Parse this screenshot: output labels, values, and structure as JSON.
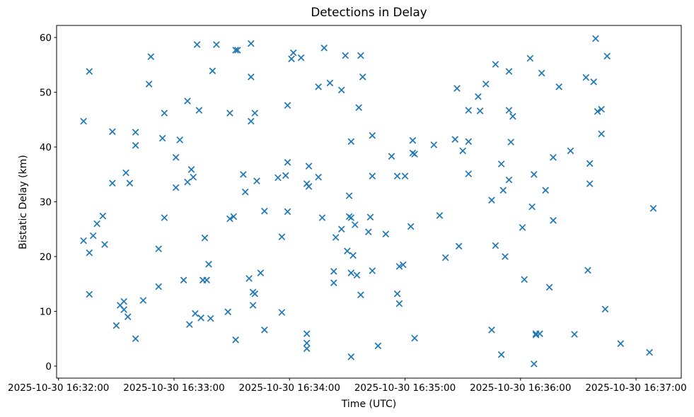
{
  "chart_data": {
    "type": "scatter",
    "title": "Detections in Delay",
    "xlabel": "Time (UTC)",
    "ylabel": "Bistatic Delay (km)",
    "marker": "x",
    "marker_color": "#1f77b4",
    "grid": false,
    "legend": null,
    "x_axis": {
      "tick_labels": [
        "2025-10-30 16:32:00",
        "2025-10-30 16:33:00",
        "2025-10-30 16:34:00",
        "2025-10-30 16:35:00",
        "2025-10-30 16:36:00",
        "2025-10-30 16:37:00"
      ],
      "tick_offsets_s": [
        0,
        60,
        120,
        180,
        240,
        300
      ],
      "range_s": [
        -1,
        323.5
      ]
    },
    "y_axis": {
      "tick_labels": [
        "0",
        "10",
        "20",
        "30",
        "40",
        "50",
        "60"
      ],
      "ticks": [
        0,
        10,
        20,
        30,
        40,
        50,
        60
      ],
      "range": [
        -2.2,
        62.2
      ]
    },
    "points_format": "[seconds_after_16:32:00_UTC, bistatic_delay_km]",
    "points": [
      [
        72,
        58.7
      ],
      [
        82,
        58.7
      ],
      [
        48,
        56.5
      ],
      [
        16,
        53.8
      ],
      [
        80,
        53.9
      ],
      [
        47,
        51.5
      ],
      [
        67,
        48.4
      ],
      [
        55,
        46.2
      ],
      [
        73,
        46.7
      ],
      [
        13,
        44.7
      ],
      [
        28,
        42.8
      ],
      [
        40,
        42.7
      ],
      [
        54,
        41.6
      ],
      [
        63,
        41.3
      ],
      [
        40,
        40.3
      ],
      [
        61,
        38.1
      ],
      [
        35,
        35.3
      ],
      [
        69,
        35.9
      ],
      [
        70,
        34.5
      ],
      [
        28,
        33.4
      ],
      [
        37,
        33.4
      ],
      [
        67,
        33.6
      ],
      [
        61,
        32.6
      ],
      [
        23,
        27.4
      ],
      [
        20,
        26.0
      ],
      [
        18,
        23.8
      ],
      [
        13,
        22.9
      ],
      [
        24,
        22.2
      ],
      [
        16,
        20.7
      ],
      [
        55,
        27.1
      ],
      [
        52,
        21.4
      ],
      [
        76,
        23.4
      ],
      [
        78,
        18.6
      ],
      [
        65,
        15.7
      ],
      [
        75,
        15.7
      ],
      [
        77,
        15.7
      ],
      [
        16,
        13.1
      ],
      [
        52,
        14.5
      ],
      [
        34,
        11.8
      ],
      [
        32,
        11.1
      ],
      [
        34,
        10.3
      ],
      [
        36,
        9.0
      ],
      [
        44,
        12.0
      ],
      [
        30,
        7.4
      ],
      [
        40,
        5.0
      ],
      [
        71,
        9.6
      ],
      [
        74,
        8.8
      ],
      [
        79,
        8.7
      ],
      [
        68,
        7.6
      ],
      [
        92,
        57.7
      ],
      [
        93,
        57.7
      ],
      [
        100,
        58.9
      ],
      [
        100,
        52.8
      ],
      [
        122,
        57.2
      ],
      [
        121,
        56.1
      ],
      [
        126,
        56.3
      ],
      [
        138,
        58.1
      ],
      [
        149,
        56.7
      ],
      [
        157,
        56.7
      ],
      [
        158,
        52.8
      ],
      [
        135,
        51.0
      ],
      [
        141,
        51.7
      ],
      [
        147,
        50.4
      ],
      [
        119,
        47.6
      ],
      [
        156,
        47.2
      ],
      [
        89,
        46.2
      ],
      [
        102,
        46.2
      ],
      [
        100,
        44.7
      ],
      [
        152,
        41.0
      ],
      [
        163,
        42.1
      ],
      [
        119,
        37.2
      ],
      [
        130,
        36.5
      ],
      [
        96,
        35.0
      ],
      [
        103,
        33.8
      ],
      [
        114,
        34.4
      ],
      [
        118,
        34.8
      ],
      [
        129,
        33.3
      ],
      [
        130,
        32.8
      ],
      [
        135,
        34.5
      ],
      [
        97,
        31.8
      ],
      [
        151,
        31.1
      ],
      [
        89,
        26.9
      ],
      [
        91,
        27.3
      ],
      [
        107,
        28.3
      ],
      [
        119,
        28.2
      ],
      [
        137,
        27.1
      ],
      [
        151,
        27.3
      ],
      [
        152,
        27.1
      ],
      [
        154,
        25.8
      ],
      [
        162,
        27.2
      ],
      [
        161,
        24.5
      ],
      [
        147,
        25.0
      ],
      [
        144,
        23.5
      ],
      [
        116,
        23.6
      ],
      [
        150,
        21.0
      ],
      [
        153,
        20.2
      ],
      [
        143,
        17.3
      ],
      [
        152,
        17.0
      ],
      [
        155,
        16.6
      ],
      [
        163,
        17.4
      ],
      [
        105,
        17.0
      ],
      [
        99,
        16.0
      ],
      [
        143,
        15.2
      ],
      [
        157,
        13.0
      ],
      [
        101,
        13.5
      ],
      [
        102,
        13.2
      ],
      [
        101,
        11.1
      ],
      [
        88,
        9.9
      ],
      [
        116,
        9.8
      ],
      [
        107,
        6.6
      ],
      [
        92,
        4.8
      ],
      [
        129,
        5.9
      ],
      [
        129,
        4.2
      ],
      [
        129,
        3.2
      ],
      [
        152,
        1.7
      ],
      [
        227,
        55.1
      ],
      [
        234,
        53.8
      ],
      [
        222,
        51.5
      ],
      [
        207,
        50.7
      ],
      [
        218,
        49.2
      ],
      [
        213,
        46.7
      ],
      [
        219,
        46.6
      ],
      [
        234,
        46.7
      ],
      [
        236,
        45.6
      ],
      [
        184,
        41.2
      ],
      [
        195,
        40.4
      ],
      [
        206,
        41.4
      ],
      [
        213,
        41.0
      ],
      [
        235,
        40.9
      ],
      [
        210,
        39.3
      ],
      [
        173,
        38.3
      ],
      [
        184,
        38.9
      ],
      [
        185,
        38.7
      ],
      [
        230,
        36.9
      ],
      [
        163,
        34.7
      ],
      [
        176,
        34.7
      ],
      [
        180,
        34.7
      ],
      [
        213,
        35.1
      ],
      [
        234,
        34.0
      ],
      [
        231,
        32.1
      ],
      [
        225,
        30.3
      ],
      [
        198,
        27.5
      ],
      [
        183,
        25.5
      ],
      [
        170,
        24.1
      ],
      [
        241,
        25.3
      ],
      [
        208,
        21.9
      ],
      [
        227,
        22.0
      ],
      [
        201,
        19.8
      ],
      [
        232,
        20.0
      ],
      [
        177,
        18.2
      ],
      [
        179,
        18.5
      ],
      [
        176,
        13.2
      ],
      [
        177,
        11.4
      ],
      [
        225,
        6.6
      ],
      [
        185,
        5.1
      ],
      [
        166,
        3.7
      ],
      [
        230,
        2.1
      ],
      [
        279,
        59.8
      ],
      [
        245,
        56.2
      ],
      [
        285,
        56.6
      ],
      [
        251,
        53.5
      ],
      [
        274,
        52.7
      ],
      [
        278,
        51.9
      ],
      [
        260,
        51.0
      ],
      [
        280,
        46.5
      ],
      [
        282,
        46.9
      ],
      [
        282,
        42.4
      ],
      [
        266,
        39.3
      ],
      [
        257,
        38.1
      ],
      [
        276,
        37.0
      ],
      [
        247,
        35.0
      ],
      [
        276,
        33.3
      ],
      [
        253,
        32.1
      ],
      [
        246,
        29.1
      ],
      [
        309,
        28.8
      ],
      [
        257,
        26.6
      ],
      [
        275,
        17.5
      ],
      [
        242,
        15.8
      ],
      [
        255,
        14.4
      ],
      [
        284,
        10.4
      ],
      [
        248,
        5.9
      ],
      [
        248,
        5.7
      ],
      [
        250,
        5.9
      ],
      [
        268,
        5.8
      ],
      [
        292,
        4.1
      ],
      [
        307,
        2.5
      ],
      [
        247,
        0.4
      ]
    ]
  }
}
